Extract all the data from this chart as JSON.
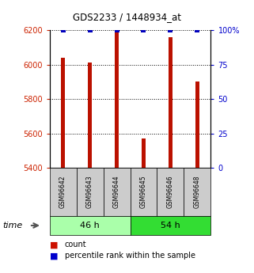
{
  "title": "GDS2233 / 1448934_at",
  "samples": [
    "GSM96642",
    "GSM96643",
    "GSM96644",
    "GSM96645",
    "GSM96646",
    "GSM96648"
  ],
  "counts": [
    6040,
    6010,
    6198,
    5570,
    6160,
    5900
  ],
  "percentiles": [
    100,
    100,
    100,
    100,
    100,
    100
  ],
  "groups": [
    {
      "label": "46 h",
      "indices": [
        0,
        1,
        2
      ],
      "color": "#aaffaa"
    },
    {
      "label": "54 h",
      "indices": [
        3,
        4,
        5
      ],
      "color": "#33dd33"
    }
  ],
  "ylim_left": [
    5400,
    6200
  ],
  "ylim_right": [
    0,
    100
  ],
  "yticks_left": [
    5400,
    5600,
    5800,
    6000,
    6200
  ],
  "yticks_right": [
    0,
    25,
    50,
    75,
    100
  ],
  "ytick_labels_right": [
    "0",
    "25",
    "50",
    "75",
    "100%"
  ],
  "bar_color": "#bb1100",
  "dot_color": "#0000bb",
  "bar_width": 0.15,
  "background_color": "#ffffff",
  "plot_bg": "#ffffff",
  "grid_color": "#000000",
  "left_tick_color": "#cc2200",
  "right_tick_color": "#0000cc",
  "sample_box_color": "#cccccc",
  "legend_bar_color": "#cc1100",
  "legend_dot_color": "#0000cc"
}
